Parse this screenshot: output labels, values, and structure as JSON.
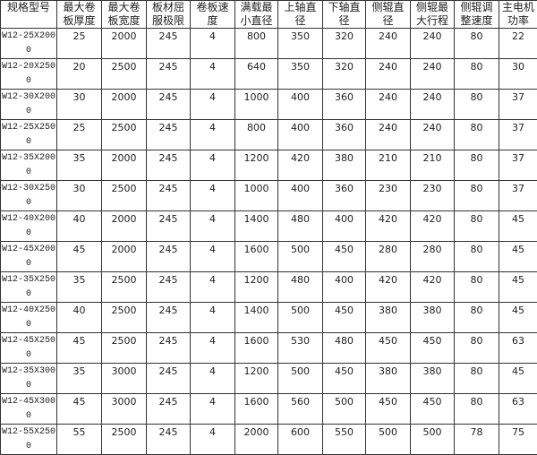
{
  "table": {
    "headers": [
      "规格型号",
      "最大卷板厚度",
      "最大卷板宽度",
      "板材屈服极限",
      "卷板速度",
      "满载最小直径",
      "上轴直径",
      "下轴直径",
      "侧辊直径",
      "侧辊最大行程",
      "侧辊调整速度",
      "主电机功率"
    ],
    "rows": [
      [
        "W12-25X2000",
        "25",
        "2000",
        "245",
        "4",
        "800",
        "350",
        "320",
        "240",
        "240",
        "80",
        "22"
      ],
      [
        "W12-20X2500",
        "20",
        "2500",
        "245",
        "4",
        "640",
        "350",
        "320",
        "240",
        "240",
        "80",
        "30"
      ],
      [
        "W12-30X2000",
        "30",
        "2000",
        "245",
        "4",
        "1000",
        "400",
        "360",
        "240",
        "240",
        "80",
        "37"
      ],
      [
        "W12-25X2500",
        "25",
        "2500",
        "245",
        "4",
        "800",
        "400",
        "360",
        "240",
        "240",
        "80",
        "37"
      ],
      [
        "W12-35X2000",
        "35",
        "2000",
        "245",
        "4",
        "1200",
        "420",
        "380",
        "210",
        "210",
        "80",
        "37"
      ],
      [
        "W12-30X2500",
        "30",
        "2500",
        "245",
        "4",
        "1000",
        "400",
        "360",
        "230",
        "230",
        "80",
        "37"
      ],
      [
        "W12-40X2000",
        "40",
        "2000",
        "245",
        "4",
        "1400",
        "480",
        "400",
        "420",
        "420",
        "80",
        "45"
      ],
      [
        "W12-45X2000",
        "45",
        "2000",
        "245",
        "4",
        "1600",
        "500",
        "450",
        "280",
        "280",
        "80",
        "45"
      ],
      [
        "W12-35X2500",
        "35",
        "2500",
        "245",
        "4",
        "1200",
        "480",
        "400",
        "420",
        "420",
        "80",
        "45"
      ],
      [
        "W12-40X2500",
        "40",
        "2500",
        "245",
        "4",
        "1400",
        "500",
        "450",
        "380",
        "380",
        "80",
        "45"
      ],
      [
        "W12-45X2500",
        "45",
        "2500",
        "245",
        "4",
        "1600",
        "530",
        "480",
        "450",
        "450",
        "80",
        "63"
      ],
      [
        "W12-35X3000",
        "35",
        "3000",
        "245",
        "4",
        "1200",
        "500",
        "450",
        "380",
        "380",
        "80",
        "45"
      ],
      [
        "W12-45X3000",
        "45",
        "3000",
        "245",
        "4",
        "1600",
        "560",
        "500",
        "450",
        "450",
        "80",
        "63"
      ],
      [
        "W12-55X2500",
        "55",
        "2500",
        "245",
        "4",
        "2000",
        "600",
        "550",
        "500",
        "500",
        "78",
        "75"
      ]
    ]
  }
}
